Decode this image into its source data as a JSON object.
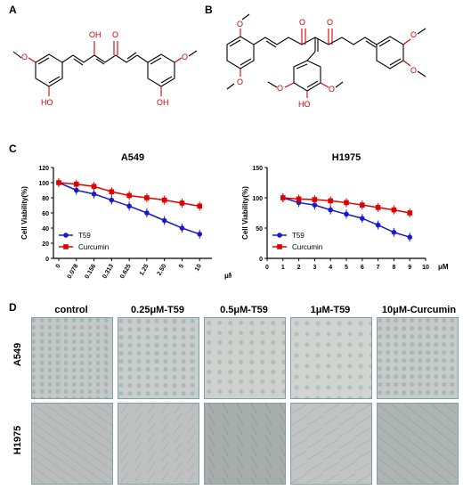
{
  "panels": {
    "a": "A",
    "b": "B",
    "c": "C",
    "d": "D"
  },
  "structure_a_atoms": {
    "oh_top": "OH",
    "o_keto": "O",
    "o_left": "O",
    "oh_left": "HO",
    "o_right": "O",
    "oh_right": "OH"
  },
  "structure_b_atoms": {
    "o": "O",
    "oh": "HO"
  },
  "chart_data": [
    {
      "type": "line",
      "title": "A549",
      "ylabel": "Cell Viability(%)",
      "xlabel": "μM",
      "categories": [
        "0",
        "0.078",
        "0.156",
        "0.313",
        "0.625",
        "1.25",
        "2.50",
        "5",
        "10"
      ],
      "ylim": [
        0,
        120
      ],
      "yticks": [
        "0",
        "20",
        "40",
        "60",
        "80",
        "100",
        "120"
      ],
      "series": [
        {
          "name": "T59",
          "color": "#1a1acc",
          "values": [
            100,
            90,
            85,
            77,
            69,
            60,
            50,
            40,
            32
          ]
        },
        {
          "name": "Curcumin",
          "color": "#e00000",
          "values": [
            100,
            98,
            95,
            88,
            83,
            80,
            77,
            73,
            69
          ]
        }
      ],
      "legend": "bottom-left"
    },
    {
      "type": "line",
      "title": "H1975",
      "ylabel": "Cell Viability(%)",
      "xlabel": "μM",
      "x": [
        "0",
        "1",
        "2",
        "3",
        "4",
        "5",
        "6",
        "7",
        "8",
        "9",
        "10"
      ],
      "ylim": [
        0,
        150
      ],
      "yticks": [
        "0",
        "50",
        "100",
        "150"
      ],
      "series": [
        {
          "name": "T59",
          "color": "#1a1acc",
          "x": [
            1,
            2,
            3,
            4,
            5,
            6,
            7,
            8,
            9
          ],
          "values": [
            100,
            92,
            88,
            80,
            73,
            66,
            55,
            43,
            35
          ]
        },
        {
          "name": "Curcumin",
          "color": "#e00000",
          "x": [
            1,
            2,
            3,
            4,
            5,
            6,
            7,
            8,
            9
          ],
          "values": [
            100,
            98,
            97,
            95,
            92,
            88,
            84,
            80,
            75
          ]
        }
      ],
      "legend": "bottom-left"
    }
  ],
  "panel_d": {
    "columns": [
      "control",
      "0.25μM-T59",
      "0.5μM-T59",
      "1μM-T59",
      "10μM-Curcumin"
    ],
    "rows": [
      "A549",
      "H1975"
    ]
  }
}
